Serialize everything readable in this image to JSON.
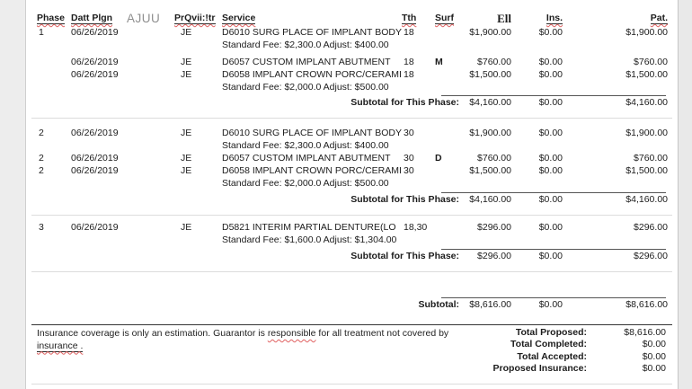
{
  "header": {
    "phase": "Phase",
    "date": "Datt Plgn",
    "ajuu": "AJUU",
    "provider": "PrQvii:!tr",
    "service": "Service",
    "tooth": "Tth",
    "surf": "Surf",
    "fee": "Ell",
    "ins": "Ins.",
    "pat": "Pat."
  },
  "labels": {
    "phase_subtotal": "Subtotal for This Phase:",
    "grand_subtotal": "Subtotal:"
  },
  "phases": [
    {
      "rows": [
        {
          "phase": "1",
          "date": "06/26/2019",
          "prov": "JE",
          "service": "D6010 SURG PLACE OF IMPLANT BODY",
          "tooth": "18",
          "surf": "",
          "fee": "$1,900.00",
          "ins": "$0.00",
          "pat": "$1,900.00",
          "std": "Standard Fee: $2,300.0 Adjust: $400.00"
        },
        {
          "phase": "",
          "date": "06/26/2019",
          "prov": "JE",
          "service": "D6057 CUSTOM IMPLANT ABUTMENT",
          "tooth": "18",
          "surf": "M",
          "fee": "$760.00",
          "ins": "$0.00",
          "pat": "$760.00"
        },
        {
          "phase": "",
          "date": "06/26/2019",
          "prov": "JE",
          "service": "D6058 IMPLANT CROWN PORC/CERAMI",
          "tooth": "18",
          "surf": "",
          "fee": "$1,500.00",
          "ins": "$0.00",
          "pat": "$1,500.00",
          "std": "Standard Fee: $2,000.0 Adjust: $500.00"
        }
      ],
      "subtotal": {
        "fee": "$4,160.00",
        "ins": "$0.00",
        "pat": "$4,160.00"
      }
    },
    {
      "rows": [
        {
          "phase": "2",
          "date": "06/26/2019",
          "prov": "JE",
          "service": "D6010 SURG PLACE OF IMPLANT BODY",
          "tooth": "30",
          "surf": "",
          "fee": "$1,900.00",
          "ins": "$0.00",
          "pat": "$1,900.00",
          "std": "Standard Fee: $2,300.0 Adjust: $400.00"
        },
        {
          "phase": "2",
          "date": "06/26/2019",
          "prov": "JE",
          "service": "D6057 CUSTOM IMPLANT ABUTMENT",
          "tooth": "30",
          "surf": "D",
          "fee": "$760.00",
          "ins": "$0.00",
          "pat": "$760.00"
        },
        {
          "phase": "2",
          "date": "06/26/2019",
          "prov": "JE",
          "service": "D6058 IMPLANT CROWN PORC/CERAMI",
          "tooth": "30",
          "surf": "",
          "fee": "$1,500.00",
          "ins": "$0.00",
          "pat": "$1,500.00",
          "std": "Standard Fee: $2,000.0 Adjust: $500.00"
        }
      ],
      "subtotal": {
        "fee": "$4,160.00",
        "ins": "$0.00",
        "pat": "$4,160.00"
      }
    },
    {
      "rows": [
        {
          "phase": "3",
          "date": "06/26/2019",
          "prov": "JE",
          "service": "D5821  INTERIM PARTIAL DENTURE(LO",
          "tooth": "18,30",
          "surf": "",
          "fee": "$296.00",
          "ins": "$0.00",
          "pat": "$296.00",
          "std": "Standard Fee: $1,600.0 Adjust: $1,304.00"
        }
      ],
      "subtotal": {
        "fee": "$296.00",
        "ins": "$0.00",
        "pat": "$296.00"
      }
    }
  ],
  "grand_subtotal": {
    "fee": "$8,616.00",
    "ins": "$0.00",
    "pat": "$8,616.00"
  },
  "footer": {
    "note_before": "Insurance coverage is only an estimation. Guarantor is ",
    "note_word": "responsible",
    "note_after": " for all treatment not covered by",
    "note_line2": "insurance .",
    "totals": [
      {
        "label": "Total Proposed:",
        "value": "$8,616.00"
      },
      {
        "label": "Total Completed:",
        "value": "$0.00"
      },
      {
        "label": "Total Accepted:",
        "value": "$0.00"
      },
      {
        "label": "Proposed Insurance:",
        "value": "$0.00"
      }
    ]
  },
  "colors": {
    "squiggle": "#e06060",
    "header_underline": "#2a2a2a",
    "ajuu_gray": "#8f8f8f"
  }
}
